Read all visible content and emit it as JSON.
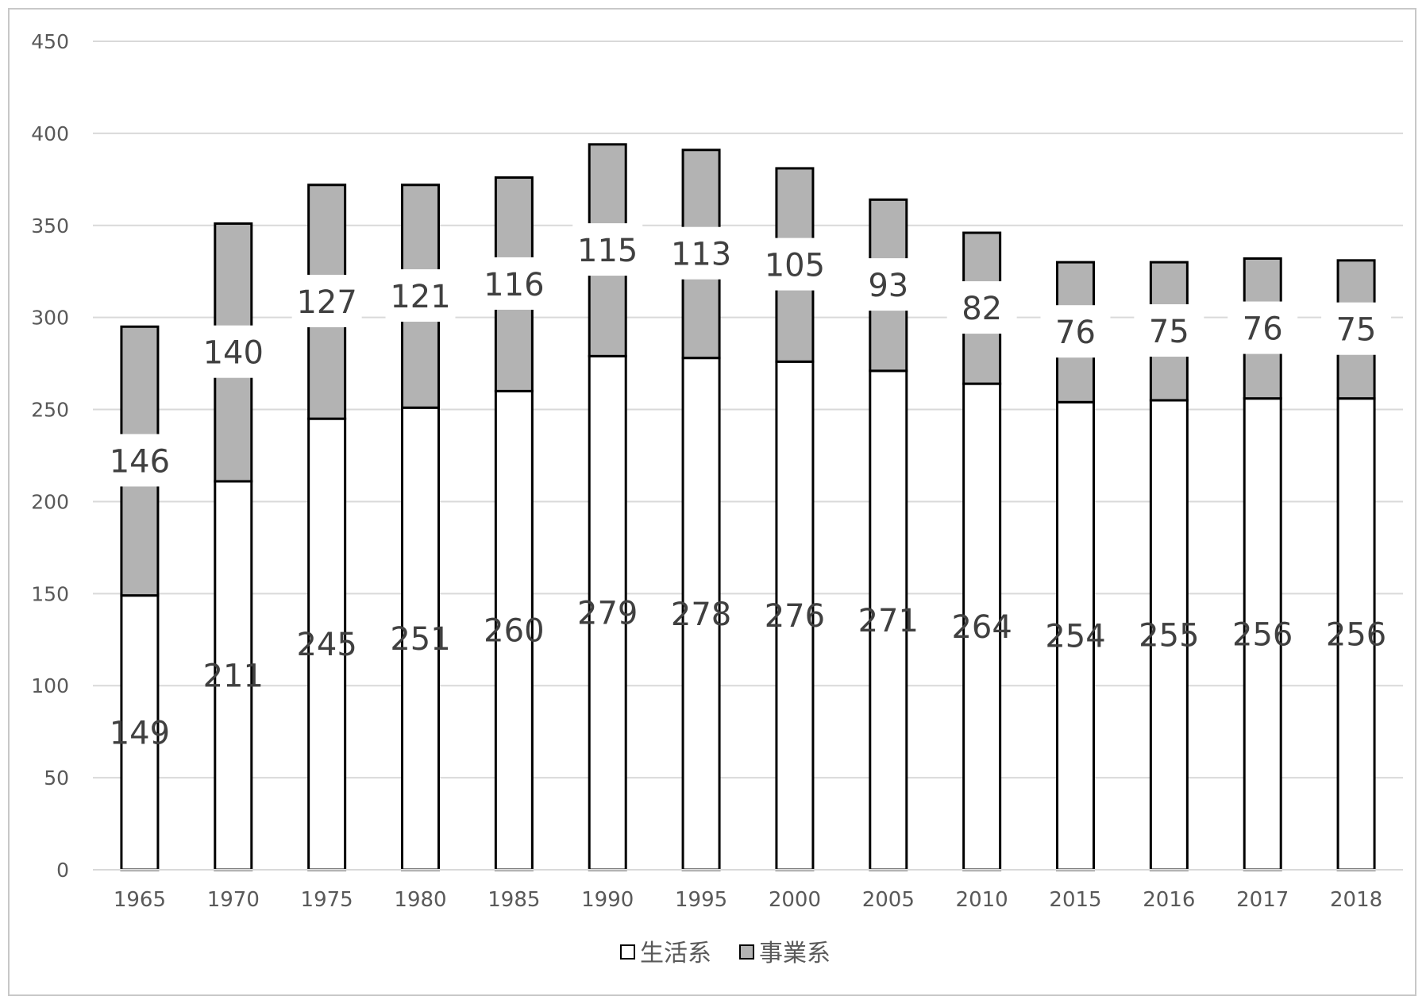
{
  "chart_data": {
    "type": "bar",
    "stacked": true,
    "title": "",
    "xlabel": "",
    "ylabel": "",
    "ylim": [
      0,
      450
    ],
    "yticks": [
      "0",
      "50",
      "100",
      "150",
      "200",
      "250",
      "300",
      "350",
      "400",
      "450"
    ],
    "grid": true,
    "legend_position": "bottom",
    "categories": [
      "1965",
      "1970",
      "1975",
      "1980",
      "1985",
      "1990",
      "1995",
      "2000",
      "2005",
      "2010",
      "2015",
      "2016",
      "2017",
      "2018"
    ],
    "series": [
      {
        "name": "生活系",
        "color": "#ffffff",
        "values": [
          149,
          211,
          245,
          251,
          260,
          279,
          278,
          276,
          271,
          264,
          254,
          255,
          256,
          256
        ]
      },
      {
        "name": "事業系",
        "color": "#b3b3b3",
        "values": [
          146,
          140,
          127,
          121,
          116,
          115,
          113,
          105,
          93,
          82,
          76,
          75,
          76,
          75
        ]
      }
    ]
  }
}
